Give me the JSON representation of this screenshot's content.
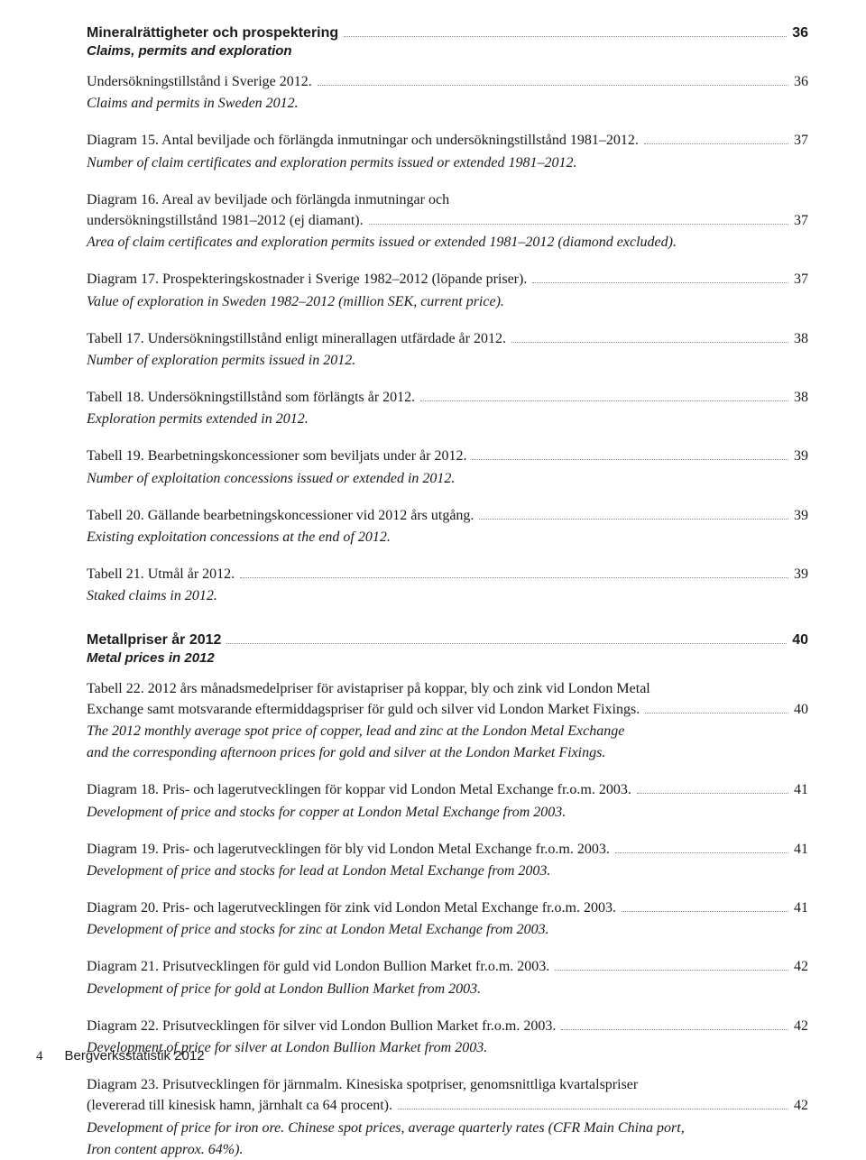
{
  "section1": {
    "title": "Mineralrättigheter och prospektering",
    "subtitle": "Claims, permits and exploration",
    "page": "36"
  },
  "e1": {
    "l1": "Undersökningstillstånd i Sverige 2012.",
    "sub": "Claims and permits in Sweden 2012.",
    "page": "36"
  },
  "e2": {
    "l1": "Diagram 15. Antal beviljade och förlängda inmutningar och undersökningstillstånd 1981–2012.",
    "sub": "Number of claim certificates and exploration permits issued or extended 1981–2012.",
    "page": "37"
  },
  "e3": {
    "l1": "Diagram 16. Areal av beviljade och förlängda inmutningar och",
    "l2": "undersökningstillstånd 1981–2012 (ej diamant).",
    "sub": "Area of claim certificates and exploration permits issued or extended 1981–2012 (diamond excluded).",
    "page": "37"
  },
  "e4": {
    "l1": "Diagram 17. Prospekteringskostnader i Sverige 1982–2012 (löpande priser).",
    "sub": "Value of exploration in Sweden 1982–2012 (million SEK, current price).",
    "page": "37"
  },
  "e5": {
    "l1": "Tabell 17. Undersökningstillstånd enligt minerallagen utfärdade år 2012.",
    "sub": "Number of exploration permits issued in 2012.",
    "page": "38"
  },
  "e6": {
    "l1": "Tabell 18. Undersökningstillstånd som förlängts år 2012.",
    "sub": "Exploration permits extended in 2012.",
    "page": "38"
  },
  "e7": {
    "l1": "Tabell 19. Bearbetningskoncessioner som beviljats under år 2012.",
    "sub": "Number of exploitation concessions issued or extended in 2012.",
    "page": "39"
  },
  "e8": {
    "l1": "Tabell 20. Gällande bearbetningskoncessioner vid 2012 års utgång.",
    "sub": "Existing exploitation concessions at the end of 2012.",
    "page": "39"
  },
  "e9": {
    "l1": "Tabell 21. Utmål år 2012.",
    "sub": "Staked claims in 2012.",
    "page": "39"
  },
  "section2": {
    "title": "Metallpriser år 2012",
    "subtitle": "Metal prices in 2012",
    "page": "40"
  },
  "e10": {
    "l1": "Tabell 22. 2012 års månadsmedelpriser för avistapriser på koppar, bly och zink vid London Metal",
    "l2": "Exchange samt motsvarande eftermiddagspriser för guld och silver vid London Market Fixings.",
    "sub1": "The 2012 monthly average spot price of copper, lead and zinc at the London Metal Exchange",
    "sub2": "and the corresponding afternoon prices for gold and silver at the London Market Fixings.",
    "page": "40"
  },
  "e11": {
    "l1": "Diagram 18. Pris- och lagerutvecklingen för koppar vid London Metal Exchange fr.o.m. 2003.",
    "sub": "Development of price and stocks for copper at London Metal Exchange from 2003.",
    "page": "41"
  },
  "e12": {
    "l1": "Diagram 19. Pris- och lagerutvecklingen för bly vid London Metal Exchange fr.o.m. 2003.",
    "sub": "Development of price and stocks for lead at London Metal Exchange from 2003.",
    "page": "41"
  },
  "e13": {
    "l1": "Diagram 20. Pris- och lagerutvecklingen för zink vid London Metal Exchange fr.o.m. 2003.",
    "sub": "Development of price and stocks for zinc at London Metal Exchange from 2003.",
    "page": "41"
  },
  "e14": {
    "l1": "Diagram 21. Prisutvecklingen för guld vid London Bullion Market fr.o.m. 2003.",
    "sub": "Development of price for gold at London Bullion Market from 2003.",
    "page": "42"
  },
  "e15": {
    "l1": "Diagram 22. Prisutvecklingen för silver vid London Bullion Market fr.o.m. 2003.",
    "sub": "Development of price for silver at London Bullion Market from 2003.",
    "page": "42"
  },
  "e16": {
    "l1": "Diagram 23. Prisutvecklingen för järnmalm. Kinesiska spotpriser, genomsnittliga kvartalspriser",
    "l2": "(levererad till kinesisk hamn, järnhalt ca 64 procent).",
    "sub1": "Development of price for iron ore. Chinese spot prices, average quarterly rates (CFR Main China port,",
    "sub2": "Iron content approx. 64%).",
    "page": "42"
  },
  "footer": {
    "page": "4",
    "title": "Bergverksstatistik 2012"
  }
}
